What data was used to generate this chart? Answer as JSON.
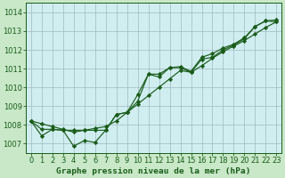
{
  "background_color": "#c8e8c8",
  "plot_bg_color": "#d0eef0",
  "grid_color": "#a0b8c0",
  "line_color": "#1a5c1a",
  "marker_color": "#1a5c1a",
  "x_hours": [
    0,
    1,
    2,
    3,
    4,
    5,
    6,
    7,
    8,
    9,
    10,
    11,
    12,
    13,
    14,
    15,
    16,
    17,
    18,
    19,
    20,
    21,
    22,
    23
  ],
  "series1": [
    1008.2,
    1007.4,
    1007.75,
    1007.7,
    1006.85,
    1007.15,
    1007.05,
    1007.7,
    1008.55,
    1008.65,
    1009.25,
    1010.7,
    1010.55,
    1011.05,
    1011.05,
    1010.8,
    1011.5,
    1011.6,
    1012.0,
    1012.25,
    1012.6,
    1013.25,
    1013.55,
    1013.5
  ],
  "series2": [
    1008.2,
    1008.05,
    1007.9,
    1007.75,
    1007.6,
    1007.7,
    1007.8,
    1007.9,
    1008.2,
    1008.65,
    1009.1,
    1009.55,
    1010.0,
    1010.45,
    1010.9,
    1010.8,
    1011.15,
    1011.55,
    1011.9,
    1012.2,
    1012.5,
    1012.85,
    1013.2,
    1013.5
  ],
  "series3": [
    1008.2,
    1007.75,
    1007.75,
    1007.7,
    1007.7,
    1007.7,
    1007.7,
    1007.7,
    1008.55,
    1008.65,
    1009.6,
    1010.7,
    1010.7,
    1011.05,
    1011.1,
    1010.85,
    1011.6,
    1011.8,
    1012.1,
    1012.3,
    1012.65,
    1013.25,
    1013.55,
    1013.6
  ],
  "ylim": [
    1006.5,
    1014.5
  ],
  "yticks": [
    1007,
    1008,
    1009,
    1010,
    1011,
    1012,
    1013,
    1014
  ],
  "xlim": [
    -0.5,
    23.5
  ],
  "xticks": [
    0,
    1,
    2,
    3,
    4,
    5,
    6,
    7,
    8,
    9,
    10,
    11,
    12,
    13,
    14,
    15,
    16,
    17,
    18,
    19,
    20,
    21,
    22,
    23
  ],
  "xlabel": "Graphe pression niveau de la mer (hPa)",
  "tick_fontsize": 6.0
}
